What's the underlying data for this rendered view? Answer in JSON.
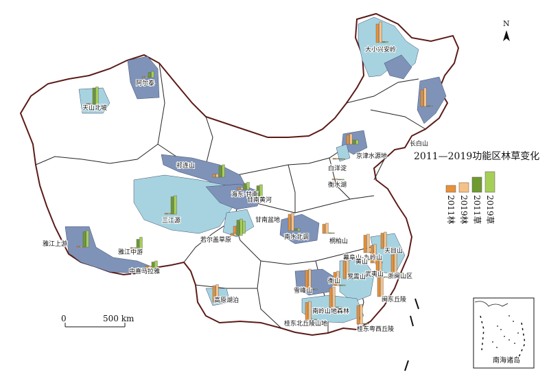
{
  "title": "2011—2019功能区林草变化",
  "north_label": "N",
  "scale": {
    "zero": "0",
    "distance": "500 km"
  },
  "inset_label": "南海诸岛",
  "legend": [
    {
      "label": "2011林",
      "color": "#e8913a"
    },
    {
      "label": "2019林",
      "color": "#f6c187"
    },
    {
      "label": "2011草",
      "color": "#6f9a2f"
    },
    {
      "label": "2019草",
      "color": "#a6cf58"
    }
  ],
  "regions": [
    {
      "name": "大小兴安岭",
      "forest2011": 0.9,
      "forest2019": 1.0,
      "grass2011": 0.05,
      "grass2019": 0.05
    },
    {
      "name": "阿尔泰",
      "forest2011": 0.05,
      "forest2019": 0.05,
      "grass2011": 0.25,
      "grass2019": 0.3
    },
    {
      "name": "天山北坡",
      "forest2011": 0.05,
      "forest2019": 0.05,
      "grass2011": 0.8,
      "grass2019": 0.85
    },
    {
      "name": "长白山",
      "forest2011": 0.8,
      "forest2019": 0.9,
      "grass2011": 0.03,
      "grass2019": 0.03
    },
    {
      "name": "京津水源地",
      "forest2011": 0.45,
      "forest2019": 0.5,
      "grass2011": 0.2,
      "grass2019": 0.2
    },
    {
      "name": "白洋淀",
      "forest2011": 0.05,
      "forest2019": 0.05,
      "grass2011": 0.03,
      "grass2019": 0.03
    },
    {
      "name": "衡水湖",
      "forest2011": 0.05,
      "forest2019": 0.05,
      "grass2011": 0.03,
      "grass2019": 0.03
    },
    {
      "name": "祁连山",
      "forest2011": 0.15,
      "forest2019": 0.15,
      "grass2011": 0.55,
      "grass2019": 0.6
    },
    {
      "name": "海东-甘南",
      "forest2011": 0.1,
      "forest2019": 0.1,
      "grass2011": 0.3,
      "grass2019": 0.35
    },
    {
      "name": "甘南黄河",
      "forest2011": 0.15,
      "forest2019": 0.15,
      "grass2011": 0.65,
      "grass2019": 0.7
    },
    {
      "name": "三江源",
      "forest2011": 0.05,
      "forest2019": 0.05,
      "grass2011": 0.85,
      "grass2019": 0.9
    },
    {
      "name": "甘南盆地",
      "forest2011": 0.35,
      "forest2019": 0.4,
      "grass2011": 0.55,
      "grass2019": 0.6
    },
    {
      "name": "若尔盖草原",
      "forest2011": 0.1,
      "forest2019": 0.1,
      "grass2011": 0.75,
      "grass2019": 0.8
    },
    {
      "name": "南水北调",
      "forest2011": 0.8,
      "forest2019": 0.85,
      "grass2011": 0.1,
      "grass2019": 0.1
    },
    {
      "name": "桐柏山",
      "forest2011": 0.45,
      "forest2019": 0.5,
      "grass2011": 0.03,
      "grass2019": 0.03
    },
    {
      "name": "雅江上游",
      "forest2011": 0.05,
      "forest2019": 0.05,
      "grass2011": 0.75,
      "grass2019": 0.8
    },
    {
      "name": "雅江中游",
      "forest2011": 0.05,
      "forest2019": 0.05,
      "grass2011": 0.45,
      "grass2019": 0.55
    },
    {
      "name": "中喜马拉雅",
      "forest2011": 0.15,
      "forest2019": 0.15,
      "grass2011": 0.35,
      "grass2019": 0.4
    },
    {
      "name": "天目山",
      "forest2011": 0.75,
      "forest2019": 0.8,
      "grass2011": 0.03,
      "grass2019": 0.03
    },
    {
      "name": "幕阜山-九岭山",
      "forest2011": 0.85,
      "forest2019": 0.9,
      "grass2011": 0.03,
      "grass2019": 0.03
    },
    {
      "name": "黄山",
      "forest2011": 0.85,
      "forest2019": 0.9,
      "grass2011": 0.03,
      "grass2019": 0.03
    },
    {
      "name": "浙闽山区",
      "forest2011": 0.9,
      "forest2019": 0.95,
      "grass2011": 0.03,
      "grass2019": 0.03
    },
    {
      "name": "武夷山",
      "forest2011": 0.9,
      "forest2019": 0.95,
      "grass2011": 0.03,
      "grass2019": 0.03
    },
    {
      "name": "罗霄山",
      "forest2011": 0.85,
      "forest2019": 0.9,
      "grass2011": 0.03,
      "grass2019": 0.03
    },
    {
      "name": "衡山",
      "forest2011": 0.65,
      "forest2019": 0.7,
      "grass2011": 0.03,
      "grass2019": 0.03
    },
    {
      "name": "雪峰山",
      "forest2011": 0.95,
      "forest2019": 1.0,
      "grass2011": 0.03,
      "grass2019": 0.03
    },
    {
      "name": "高原湖泊",
      "forest2011": 0.8,
      "forest2019": 0.85,
      "grass2011": 0.05,
      "grass2019": 0.05
    },
    {
      "name": "南岭山地森林",
      "forest2011": 0.95,
      "forest2019": 1.0,
      "grass2011": 0.03,
      "grass2019": 0.03
    },
    {
      "name": "闽东丘陵",
      "forest2011": 0.9,
      "forest2019": 0.95,
      "grass2011": 0.03,
      "grass2019": 0.03
    },
    {
      "name": "桂东北丘陵山地",
      "forest2011": 0.85,
      "forest2019": 0.9,
      "grass2011": 0.03,
      "grass2019": 0.03
    },
    {
      "name": "桂东粤西丘陵",
      "forest2011": 0.9,
      "forest2019": 0.95,
      "grass2011": 0.03,
      "grass2019": 0.03
    }
  ]
}
